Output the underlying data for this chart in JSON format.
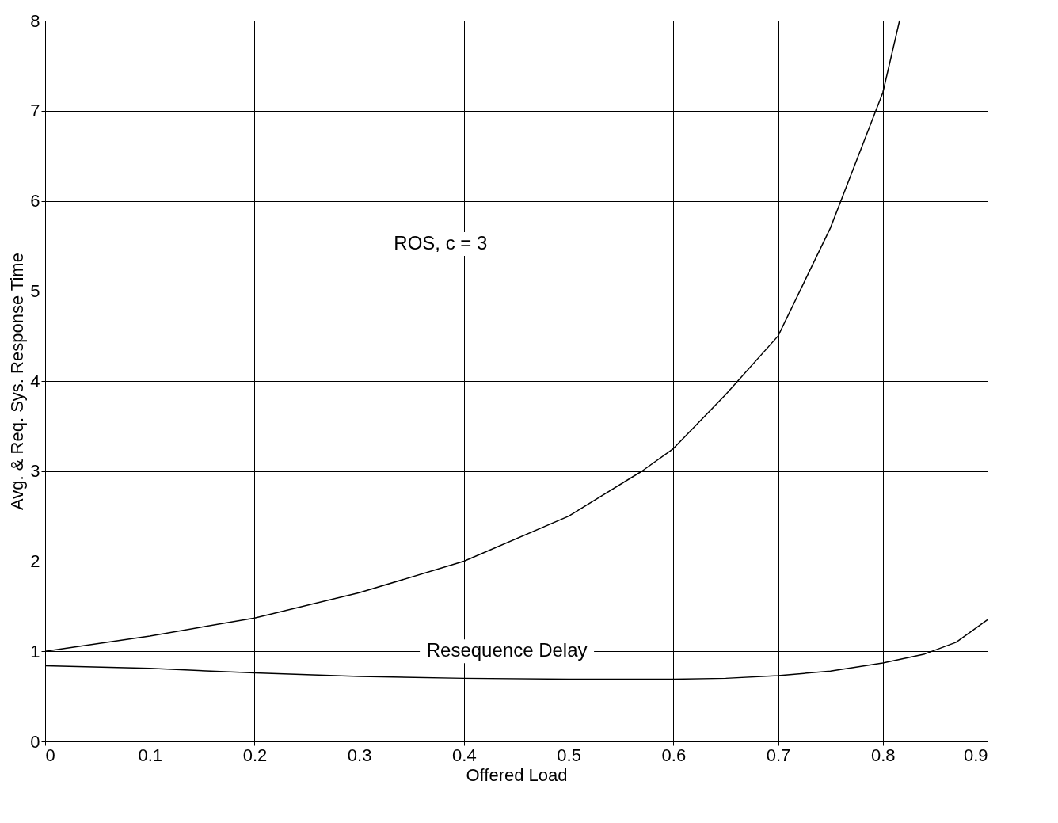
{
  "chart_data": {
    "type": "line",
    "xlabel": "Offered Load",
    "ylabel": "Avg. & Req. Sys. Response Time",
    "xlim": [
      0,
      0.9
    ],
    "xticks": [
      0,
      0.1,
      0.2,
      0.3,
      0.4,
      0.5,
      0.6,
      0.7,
      0.8,
      0.9
    ],
    "ylim": [
      0,
      8
    ],
    "yticks": [
      0,
      1,
      2,
      3,
      4,
      5,
      6,
      7,
      8
    ],
    "grid": true,
    "legend": false,
    "marker": "none",
    "line_style": "solid",
    "annotations": [
      "ROS, c = 3"
    ],
    "series": [
      {
        "color": "#000000",
        "x": [
          0,
          0.1,
          0.2,
          0.3,
          0.4,
          0.5,
          0.57,
          0.6,
          0.65,
          0.7,
          0.75,
          0.78,
          0.8,
          0.816
        ],
        "values": [
          1.0,
          1.17,
          1.37,
          1.65,
          2.0,
          2.5,
          3.0,
          3.25,
          3.85,
          4.5,
          5.7,
          6.6,
          7.2,
          8.0
        ]
      },
      {
        "name": "Resequence Delay",
        "color": "#000000",
        "x": [
          0,
          0.1,
          0.2,
          0.3,
          0.4,
          0.5,
          0.6,
          0.65,
          0.7,
          0.75,
          0.8,
          0.84,
          0.87,
          0.9
        ],
        "values": [
          0.84,
          0.81,
          0.76,
          0.72,
          0.7,
          0.69,
          0.69,
          0.7,
          0.73,
          0.78,
          0.87,
          0.97,
          1.1,
          1.35
        ]
      }
    ]
  }
}
